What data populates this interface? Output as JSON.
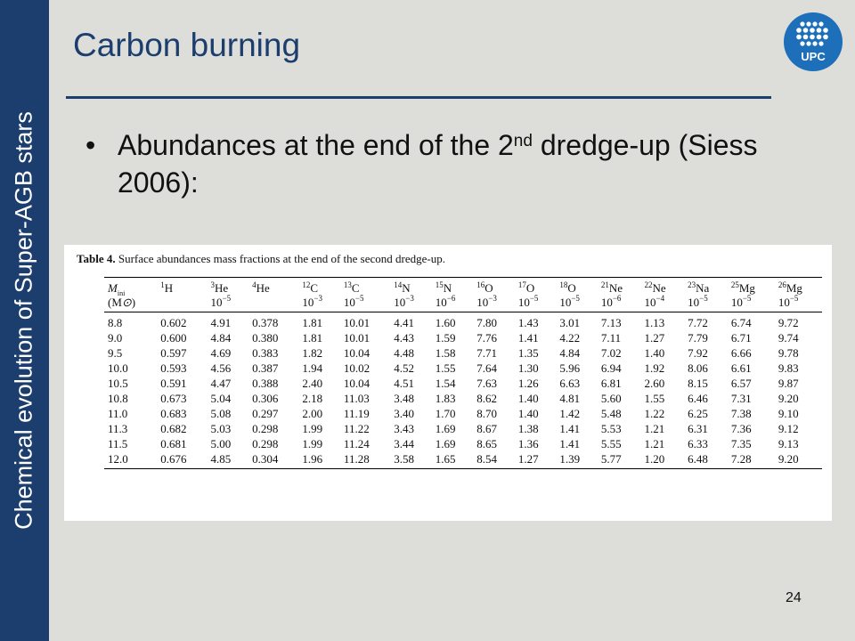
{
  "sidebar": {
    "label": "Chemical evolution of Super-AGB stars"
  },
  "slide": {
    "title": "Carbon burning",
    "bullet_pre": "Abundances at the end of the 2",
    "bullet_sup": "nd",
    "bullet_post": " dredge-up (Siess 2006):",
    "page_number": "24"
  },
  "logo": {
    "text": "UPC",
    "color": "#1c6fb8"
  },
  "table": {
    "caption_label": "Table 4.",
    "caption_text": " Surface abundances mass fractions at the end of the second dredge-up.",
    "col0_row1": "M",
    "col0_row1_sub": "ini",
    "col0_row2": "(M",
    "col0_row2_sym": "⊙",
    "col0_row2_end": ")",
    "headers": [
      {
        "iso": "1",
        "el": "H",
        "unit": ""
      },
      {
        "iso": "3",
        "el": "He",
        "unit": "10",
        "exp": "−5"
      },
      {
        "iso": "4",
        "el": "He",
        "unit": ""
      },
      {
        "iso": "12",
        "el": "C",
        "unit": "10",
        "exp": "−3"
      },
      {
        "iso": "13",
        "el": "C",
        "unit": "10",
        "exp": "−5"
      },
      {
        "iso": "14",
        "el": "N",
        "unit": "10",
        "exp": "−3"
      },
      {
        "iso": "15",
        "el": "N",
        "unit": "10",
        "exp": "−6"
      },
      {
        "iso": "16",
        "el": "O",
        "unit": "10",
        "exp": "−3"
      },
      {
        "iso": "17",
        "el": "O",
        "unit": "10",
        "exp": "−5"
      },
      {
        "iso": "18",
        "el": "O",
        "unit": "10",
        "exp": "−5"
      },
      {
        "iso": "21",
        "el": "Ne",
        "unit": "10",
        "exp": "−6"
      },
      {
        "iso": "22",
        "el": "Ne",
        "unit": "10",
        "exp": "−4"
      },
      {
        "iso": "23",
        "el": "Na",
        "unit": "10",
        "exp": "−5"
      },
      {
        "iso": "25",
        "el": "Mg",
        "unit": "10",
        "exp": "−5"
      },
      {
        "iso": "26",
        "el": "Mg",
        "unit": "10",
        "exp": "−5"
      }
    ],
    "rows": [
      [
        "8.8",
        "0.602",
        "4.91",
        "0.378",
        "1.81",
        "10.01",
        "4.41",
        "1.60",
        "7.80",
        "1.43",
        "3.01",
        "7.13",
        "1.13",
        "7.72",
        "6.74",
        "9.72"
      ],
      [
        "9.0",
        "0.600",
        "4.84",
        "0.380",
        "1.81",
        "10.01",
        "4.43",
        "1.59",
        "7.76",
        "1.41",
        "4.22",
        "7.11",
        "1.27",
        "7.79",
        "6.71",
        "9.74"
      ],
      [
        "9.5",
        "0.597",
        "4.69",
        "0.383",
        "1.82",
        "10.04",
        "4.48",
        "1.58",
        "7.71",
        "1.35",
        "4.84",
        "7.02",
        "1.40",
        "7.92",
        "6.66",
        "9.78"
      ],
      [
        "10.0",
        "0.593",
        "4.56",
        "0.387",
        "1.94",
        "10.02",
        "4.52",
        "1.55",
        "7.64",
        "1.30",
        "5.96",
        "6.94",
        "1.92",
        "8.06",
        "6.61",
        "9.83"
      ],
      [
        "10.5",
        "0.591",
        "4.47",
        "0.388",
        "2.40",
        "10.04",
        "4.51",
        "1.54",
        "7.63",
        "1.26",
        "6.63",
        "6.81",
        "2.60",
        "8.15",
        "6.57",
        "9.87"
      ],
      [
        "10.8",
        "0.673",
        "5.04",
        "0.306",
        "2.18",
        "11.03",
        "3.48",
        "1.83",
        "8.62",
        "1.40",
        "4.81",
        "5.60",
        "1.55",
        "6.46",
        "7.31",
        "9.20"
      ],
      [
        "11.0",
        "0.683",
        "5.08",
        "0.297",
        "2.00",
        "11.19",
        "3.40",
        "1.70",
        "8.70",
        "1.40",
        "1.42",
        "5.48",
        "1.22",
        "6.25",
        "7.38",
        "9.10"
      ],
      [
        "11.3",
        "0.682",
        "5.03",
        "0.298",
        "1.99",
        "11.22",
        "3.43",
        "1.69",
        "8.67",
        "1.38",
        "1.41",
        "5.53",
        "1.21",
        "6.31",
        "7.36",
        "9.12"
      ],
      [
        "11.5",
        "0.681",
        "5.00",
        "0.298",
        "1.99",
        "11.24",
        "3.44",
        "1.69",
        "8.65",
        "1.36",
        "1.41",
        "5.55",
        "1.21",
        "6.33",
        "7.35",
        "9.13"
      ],
      [
        "12.0",
        "0.676",
        "4.85",
        "0.304",
        "1.96",
        "11.28",
        "3.58",
        "1.65",
        "8.54",
        "1.27",
        "1.39",
        "5.77",
        "1.20",
        "6.48",
        "7.28",
        "9.20"
      ]
    ]
  }
}
